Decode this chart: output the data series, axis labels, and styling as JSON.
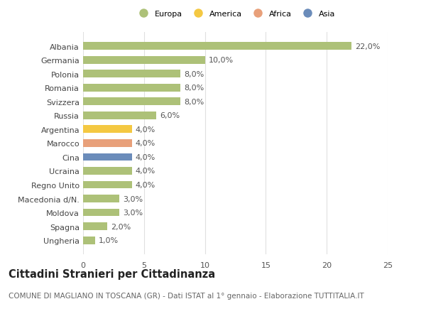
{
  "categories": [
    "Albania",
    "Germania",
    "Polonia",
    "Romania",
    "Svizzera",
    "Russia",
    "Argentina",
    "Marocco",
    "Cina",
    "Ucraina",
    "Regno Unito",
    "Macedonia d/N.",
    "Moldova",
    "Spagna",
    "Ungheria"
  ],
  "values": [
    22.0,
    10.0,
    8.0,
    8.0,
    8.0,
    6.0,
    4.0,
    4.0,
    4.0,
    4.0,
    4.0,
    3.0,
    3.0,
    2.0,
    1.0
  ],
  "colors": [
    "#adc178",
    "#adc178",
    "#adc178",
    "#adc178",
    "#adc178",
    "#adc178",
    "#f4c842",
    "#e8a07a",
    "#6b8cba",
    "#adc178",
    "#adc178",
    "#adc178",
    "#adc178",
    "#adc178",
    "#adc178"
  ],
  "legend_labels": [
    "Europa",
    "America",
    "Africa",
    "Asia"
  ],
  "legend_colors": [
    "#adc178",
    "#f4c842",
    "#e8a07a",
    "#6b8cba"
  ],
  "title": "Cittadini Stranieri per Cittadinanza",
  "subtitle": "COMUNE DI MAGLIANO IN TOSCANA (GR) - Dati ISTAT al 1° gennaio - Elaborazione TUTTITALIA.IT",
  "xlim": [
    0,
    25
  ],
  "xticks": [
    0,
    5,
    10,
    15,
    20,
    25
  ],
  "bg_color": "#ffffff",
  "grid_color": "#e0e0e0",
  "bar_height": 0.55,
  "label_fontsize": 8,
  "tick_fontsize": 8,
  "title_fontsize": 10.5,
  "subtitle_fontsize": 7.5
}
